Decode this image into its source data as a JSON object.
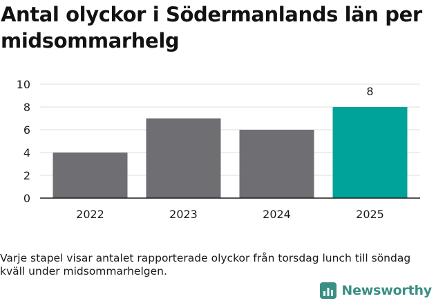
{
  "title": "Antal olyckor i Södermanlands län per midsommarhelg",
  "caption": "Varje stapel visar antalet rapporterade olyckor från torsdag lunch till söndag kväll under midsommarhelgen.",
  "brand": {
    "name": "Newsworthy",
    "icon": "newsworthy-logo-icon",
    "color": "#3a8f83"
  },
  "colors": {
    "bar": "#6f6e73",
    "highlight": "#00a39a",
    "grid": "#dcdcdc",
    "axis": "#1a1a1a"
  },
  "chart_data": {
    "type": "bar",
    "categories": [
      "2022",
      "2023",
      "2024",
      "2025"
    ],
    "values": [
      4,
      7,
      6,
      8
    ],
    "highlight_index": 3,
    "data_labels": [
      "",
      "",
      "",
      "8"
    ],
    "yticks": [
      0,
      2,
      4,
      6,
      8,
      10
    ],
    "ylim": [
      0,
      10
    ],
    "grid": true,
    "legend": "none",
    "title": "Antal olyckor i Södermanlands län per midsommarhelg",
    "xlabel": "",
    "ylabel": ""
  }
}
